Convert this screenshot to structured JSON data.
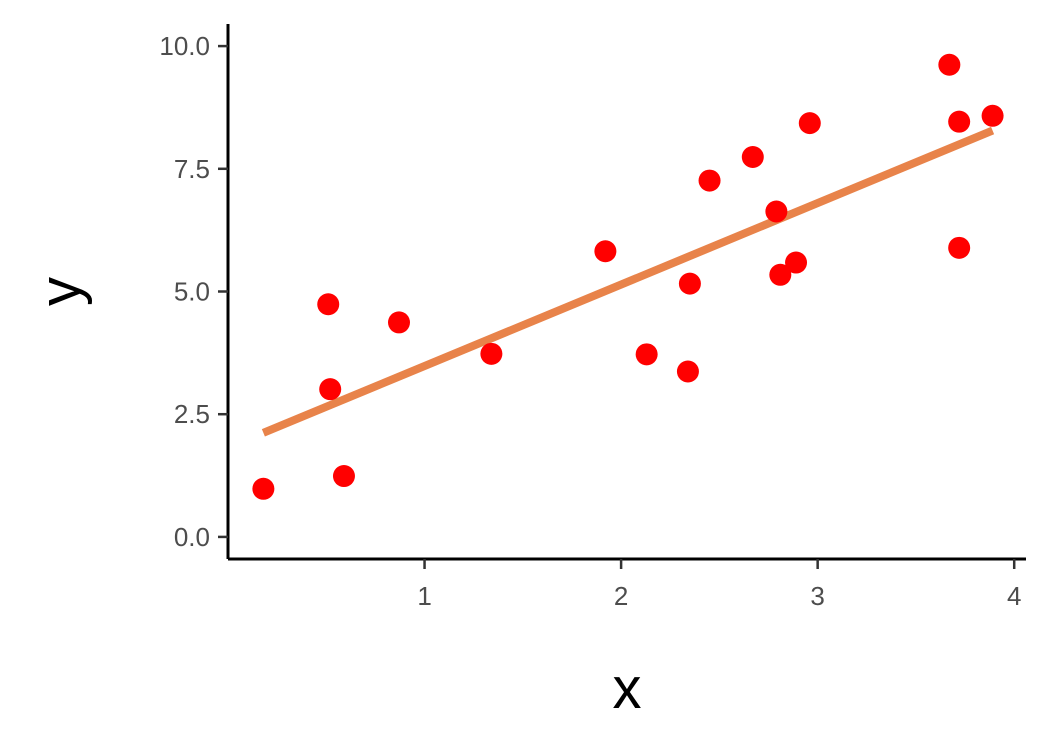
{
  "chart_data": {
    "type": "scatter",
    "title": "",
    "xlabel": "x",
    "ylabel": "y",
    "xlim": [
      0.0,
      4.06
    ],
    "ylim": [
      -0.45,
      10.45
    ],
    "x_ticks": [
      1,
      2,
      3,
      4
    ],
    "x_tick_labels": [
      "1",
      "2",
      "3",
      "4"
    ],
    "y_ticks": [
      0.0,
      2.5,
      5.0,
      7.5,
      10.0
    ],
    "y_tick_labels": [
      "0.0",
      "2.5",
      "5.0",
      "7.5",
      "10.0"
    ],
    "grid": false,
    "legend": "none",
    "series": [
      {
        "type": "scatter",
        "color": "#ff0000",
        "points": [
          {
            "x": 0.18,
            "y": 0.98
          },
          {
            "x": 0.51,
            "y": 4.74
          },
          {
            "x": 0.52,
            "y": 3.01
          },
          {
            "x": 0.59,
            "y": 1.24
          },
          {
            "x": 0.87,
            "y": 4.37
          },
          {
            "x": 1.34,
            "y": 3.73
          },
          {
            "x": 1.92,
            "y": 5.82
          },
          {
            "x": 2.13,
            "y": 3.72
          },
          {
            "x": 2.34,
            "y": 3.37
          },
          {
            "x": 2.35,
            "y": 5.16
          },
          {
            "x": 2.45,
            "y": 7.26
          },
          {
            "x": 2.67,
            "y": 7.74
          },
          {
            "x": 2.79,
            "y": 6.63
          },
          {
            "x": 2.81,
            "y": 5.34
          },
          {
            "x": 2.89,
            "y": 5.59
          },
          {
            "x": 2.96,
            "y": 8.43
          },
          {
            "x": 3.67,
            "y": 9.62
          },
          {
            "x": 3.72,
            "y": 8.46
          },
          {
            "x": 3.72,
            "y": 5.89
          },
          {
            "x": 3.89,
            "y": 8.58
          }
        ]
      },
      {
        "type": "line",
        "color": "#e8834a",
        "x": [
          0.18,
          3.89
        ],
        "y": [
          2.12,
          8.28
        ]
      }
    ]
  }
}
